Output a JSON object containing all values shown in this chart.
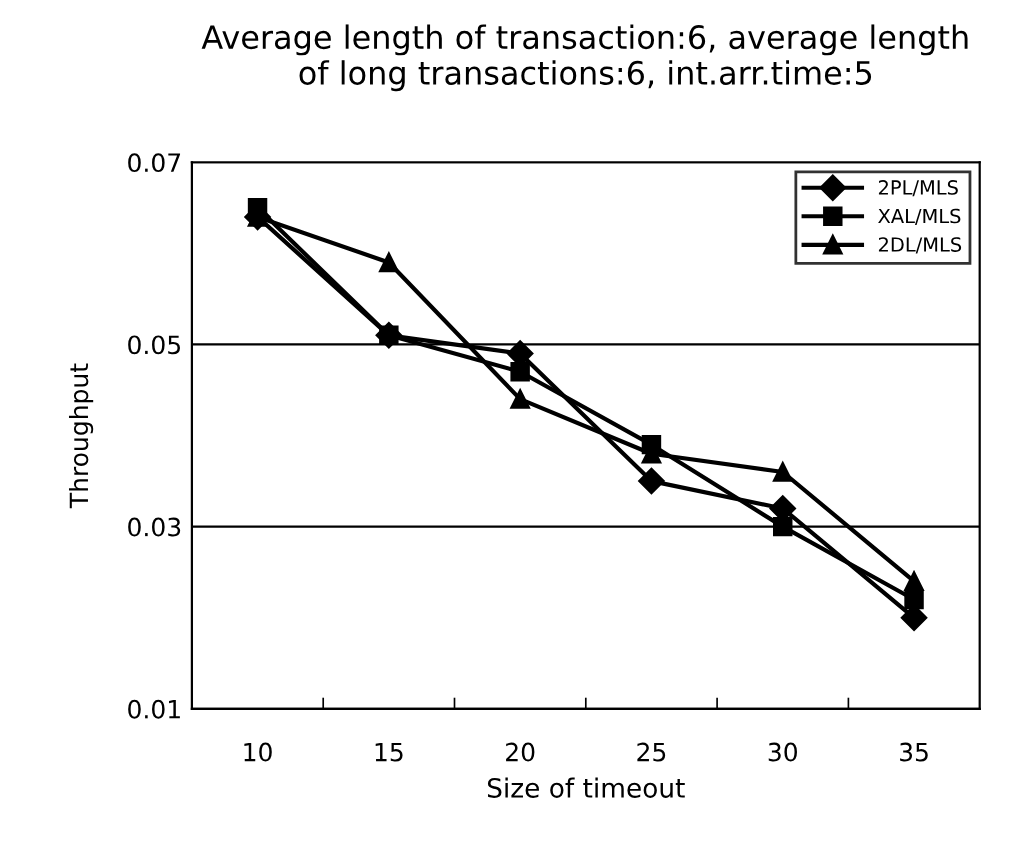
{
  "chart_data": {
    "type": "line",
    "title": "Average length of transaction:6, average length\nof long transactions:6, int.arr.time:5",
    "xlabel": "Size of timeout",
    "ylabel": "Throughput",
    "categories": [
      "10",
      "15",
      "20",
      "25",
      "30",
      "35"
    ],
    "series": [
      {
        "name": "2PL/MLS",
        "color": "#000000",
        "marker": "diamond",
        "values": [
          0.064,
          0.051,
          0.049,
          0.035,
          0.032,
          0.02
        ]
      },
      {
        "name": "XAL/MLS",
        "color": "#000000",
        "marker": "square",
        "values": [
          0.065,
          0.051,
          0.047,
          0.039,
          0.03,
          0.022
        ]
      },
      {
        "name": "2DL/MLS",
        "color": "#000000",
        "marker": "triangle",
        "values": [
          0.064,
          0.059,
          0.044,
          0.038,
          0.036,
          0.024
        ]
      }
    ],
    "ylim": [
      0.01,
      0.07
    ],
    "yticks": [
      0.01,
      0.03,
      0.05,
      0.07
    ],
    "grid": "y",
    "legend": "top right"
  }
}
